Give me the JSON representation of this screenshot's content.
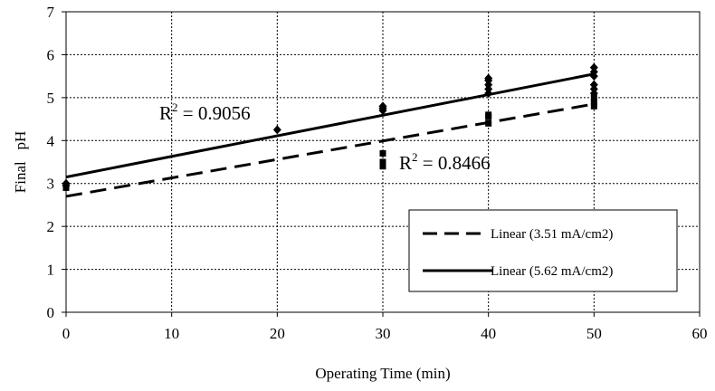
{
  "chart_data": {
    "type": "scatter",
    "xlabel": "Operating Time (min)",
    "ylabel": "Final   pH",
    "xlim": [
      0,
      60
    ],
    "ylim": [
      0,
      7
    ],
    "x_ticks": [
      0,
      10,
      20,
      30,
      40,
      50,
      60
    ],
    "y_ticks": [
      0,
      1,
      2,
      3,
      4,
      5,
      6,
      7
    ],
    "grid": true,
    "legend_position": "bottom-right, inside plot",
    "series": [
      {
        "name": "Linear (3.51 mA/cm2)",
        "line_style": "dashed",
        "marker": "square",
        "points": [
          [
            0,
            2.9
          ],
          [
            0,
            2.95
          ],
          [
            30,
            3.4
          ],
          [
            30,
            3.45
          ],
          [
            30,
            3.5
          ],
          [
            30,
            3.7
          ],
          [
            40,
            4.4
          ],
          [
            40,
            4.55
          ],
          [
            40,
            4.6
          ],
          [
            50,
            4.8
          ],
          [
            50,
            4.9
          ],
          [
            50,
            5.0
          ]
        ],
        "trendline": {
          "x": [
            0,
            50
          ],
          "y": [
            2.7,
            4.85
          ]
        },
        "r_squared": {
          "prefix": "R",
          "exponent": "2",
          "value": " = 0.8466"
        }
      },
      {
        "name": "Linear (5.62 mA/cm2)",
        "line_style": "solid",
        "marker": "diamond",
        "points": [
          [
            0,
            2.95
          ],
          [
            0,
            3.0
          ],
          [
            20,
            4.25
          ],
          [
            30,
            4.7
          ],
          [
            30,
            4.75
          ],
          [
            30,
            4.8
          ],
          [
            40,
            5.1
          ],
          [
            40,
            5.2
          ],
          [
            40,
            5.3
          ],
          [
            40,
            5.4
          ],
          [
            40,
            5.45
          ],
          [
            50,
            5.1
          ],
          [
            50,
            5.2
          ],
          [
            50,
            5.3
          ],
          [
            50,
            5.5
          ],
          [
            50,
            5.6
          ],
          [
            50,
            5.7
          ]
        ],
        "trendline": {
          "x": [
            0,
            50
          ],
          "y": [
            3.15,
            5.55
          ]
        },
        "r_squared": {
          "prefix": "R",
          "exponent": "2",
          "value": " = 0.9056"
        }
      }
    ]
  }
}
